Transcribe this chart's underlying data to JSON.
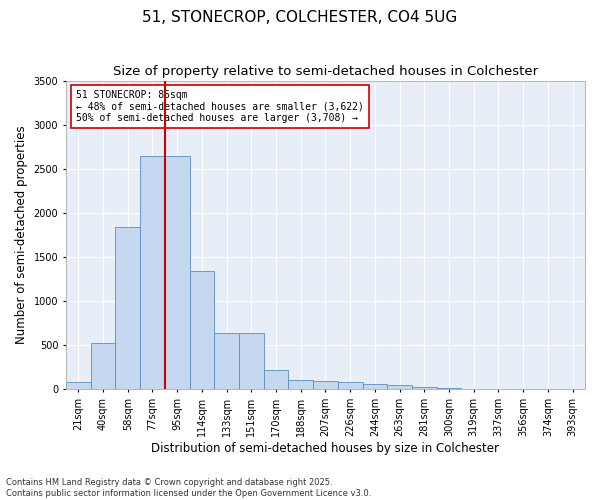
{
  "title": "51, STONECROP, COLCHESTER, CO4 5UG",
  "subtitle": "Size of property relative to semi-detached houses in Colchester",
  "xlabel": "Distribution of semi-detached houses by size in Colchester",
  "ylabel": "Number of semi-detached properties",
  "footnote": "Contains HM Land Registry data © Crown copyright and database right 2025.\nContains public sector information licensed under the Open Government Licence v3.0.",
  "categories": [
    "21sqm",
    "40sqm",
    "58sqm",
    "77sqm",
    "95sqm",
    "114sqm",
    "133sqm",
    "151sqm",
    "170sqm",
    "188sqm",
    "207sqm",
    "226sqm",
    "244sqm",
    "263sqm",
    "281sqm",
    "300sqm",
    "319sqm",
    "337sqm",
    "356sqm",
    "374sqm",
    "393sqm"
  ],
  "values": [
    80,
    530,
    1840,
    2650,
    2650,
    1340,
    640,
    640,
    220,
    110,
    100,
    80,
    60,
    45,
    25,
    15,
    10,
    7,
    4,
    3,
    2
  ],
  "bar_color": "#c5d8f0",
  "bar_edge_color": "#5b8ec4",
  "highlight_line_color": "#cc0000",
  "annotation_text": "51 STONECROP: 85sqm\n← 48% of semi-detached houses are smaller (3,622)\n50% of semi-detached houses are larger (3,708) →",
  "annotation_box_color": "#ffffff",
  "annotation_box_edge_color": "#cc0000",
  "ylim": [
    0,
    3500
  ],
  "yticks": [
    0,
    500,
    1000,
    1500,
    2000,
    2500,
    3000,
    3500
  ],
  "fig_bg_color": "#ffffff",
  "plot_bg_color": "#e8eef8",
  "title_fontsize": 11,
  "subtitle_fontsize": 9.5,
  "tick_fontsize": 7,
  "label_fontsize": 8.5,
  "footnote_fontsize": 6
}
